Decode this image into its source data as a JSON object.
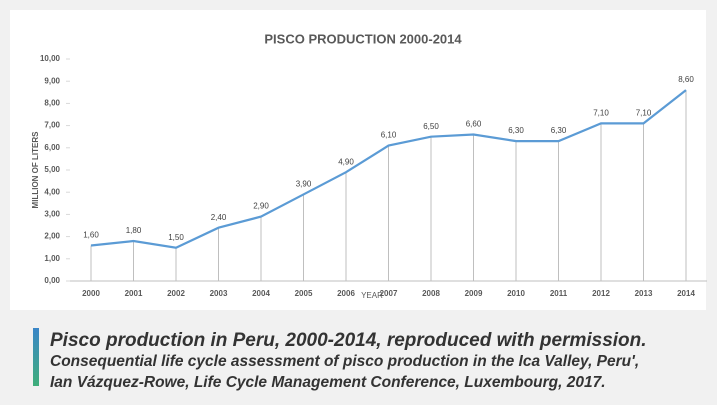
{
  "chart_data": {
    "type": "line",
    "title": "PISCO PRODUCTION 2000-2014",
    "x_label": "YEAR",
    "y_label": "MILLION OF LITERS",
    "categories": [
      "2000",
      "2001",
      "2002",
      "2003",
      "2004",
      "2005",
      "2006",
      "2007",
      "2008",
      "2009",
      "2010",
      "2011",
      "2012",
      "2013",
      "2014"
    ],
    "values": [
      1.6,
      1.8,
      1.5,
      2.4,
      2.9,
      3.9,
      4.9,
      6.1,
      6.5,
      6.6,
      6.3,
      6.3,
      7.1,
      7.1,
      8.6
    ],
    "value_labels": [
      "1,60",
      "1,80",
      "1,50",
      "2,40",
      "2,90",
      "3,90",
      "4,90",
      "6,10",
      "6,50",
      "6,60",
      "6,30",
      "6,30",
      "7,10",
      "7,10",
      "8,60"
    ],
    "color": "#5b9bd5",
    "ylim": [
      0,
      10
    ],
    "yticks": [
      {
        "value": 0,
        "label": "0,00"
      },
      {
        "value": 1,
        "label": "1,00"
      },
      {
        "value": 2,
        "label": "2,00"
      },
      {
        "value": 3,
        "label": "3,00"
      },
      {
        "value": 4,
        "label": "4,00"
      },
      {
        "value": 5,
        "label": "5,00"
      },
      {
        "value": 6,
        "label": "6,00"
      },
      {
        "value": 7,
        "label": "7,00"
      },
      {
        "value": 8,
        "label": "8,00"
      },
      {
        "value": 9,
        "label": "9,00"
      },
      {
        "value": 10,
        "label": "10,00"
      }
    ],
    "caption": [
      "Pisco production in Peru, 2000-2014, reproduced with permission.",
      "Consequential life cycle assessment of pisco production in the Ica Valley, Peru',",
      "Ian Vázquez-Rowe, Life Cycle Management Conference, Luxembourg, 2017."
    ]
  }
}
